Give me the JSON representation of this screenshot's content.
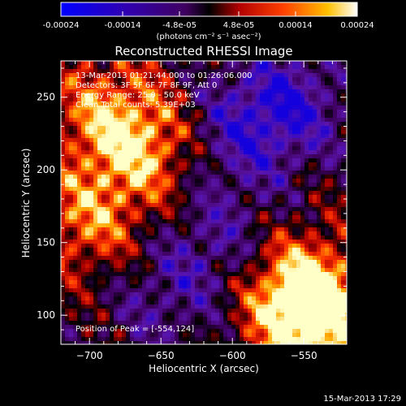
{
  "chart_data": {
    "type": "heatmap",
    "title": "Reconstructed RHESSI Image",
    "xlabel": "Heliocentric X (arcsec)",
    "ylabel": "Heliocentric Y (arcsec)",
    "xlim": [
      -720,
      -520
    ],
    "ylim": [
      80,
      275
    ],
    "x_ticks": [
      -700,
      -650,
      -600,
      -550
    ],
    "y_ticks": [
      100,
      150,
      200,
      250
    ],
    "colorbar": {
      "label": "(photons cm⁻² s⁻¹ asec⁻²)",
      "range": [
        -0.00024,
        0.00024
      ],
      "tick_values": [
        -0.00024,
        -0.00014,
        -4.8e-05,
        4.8e-05,
        0.00014,
        0.00024
      ],
      "tick_labels": [
        "-0.00024",
        "-0.00014",
        "-4.8e-05",
        "4.8e-05",
        "0.00014",
        "0.00024"
      ]
    },
    "annotations": [
      "13-Mar-2013 01:21:44.000 to 01:26:06.000",
      "Detectors: 3F 5F 6F 7F 8F 9F, Att 0",
      "Energy Range: 25.0 - 50.0 keV",
      "Clean     Total counts: 5.39E+03",
      "Position of Peak = [-554,124]"
    ],
    "peak": {
      "x": -554,
      "y": 124
    },
    "hot_regions": [
      {
        "x": -555,
        "y": 115,
        "level": 0.95
      },
      {
        "x": -540,
        "y": 95,
        "level": 0.85
      },
      {
        "x": -660,
        "y": 215,
        "level": 0.75
      },
      {
        "x": -700,
        "y": 165,
        "level": 0.65
      },
      {
        "x": -690,
        "y": 240,
        "level": 0.55
      }
    ],
    "cold_regions": [
      {
        "x": -560,
        "y": 245,
        "level": -0.7
      },
      {
        "x": -600,
        "y": 225,
        "level": -0.5
      },
      {
        "x": -610,
        "y": 150,
        "level": -0.45
      },
      {
        "x": -650,
        "y": 110,
        "level": -0.4
      }
    ]
  },
  "footer_date": "15-Mar-2013 17:29"
}
